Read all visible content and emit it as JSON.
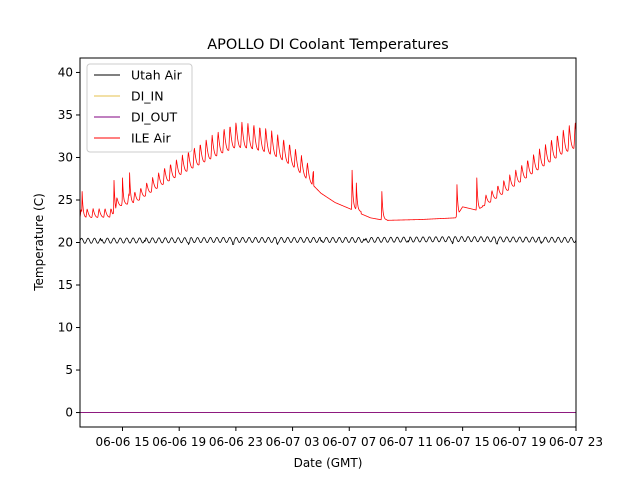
{
  "chart_data": {
    "type": "line",
    "title": "APOLLO DI Coolant Temperatures",
    "xlabel": "Date (GMT)",
    "ylabel": "Temperature (C)",
    "ylim": [
      -1.7,
      41.7
    ],
    "xlim_hours": [
      0,
      35
    ],
    "x_start": "06-06 12:00 (approx)",
    "yticks": [
      0,
      5,
      10,
      15,
      20,
      25,
      30,
      35,
      40
    ],
    "xticks": [
      {
        "label": "06-06 15",
        "hour": 3
      },
      {
        "label": "06-06 19",
        "hour": 7
      },
      {
        "label": "06-06 23",
        "hour": 11
      },
      {
        "label": "06-07 03",
        "hour": 15
      },
      {
        "label": "06-07 07",
        "hour": 19
      },
      {
        "label": "06-07 11",
        "hour": 23
      },
      {
        "label": "06-07 15",
        "hour": 27
      },
      {
        "label": "06-07 19",
        "hour": 31
      },
      {
        "label": "06-07 23",
        "hour": 35
      }
    ],
    "legend_position": "top-left",
    "series": [
      {
        "name": "Utah Air",
        "color": "#000000",
        "description": "nearly flat around 20.3 C with small oscillations",
        "baseline_points": [
          [
            0,
            20.2
          ],
          [
            10,
            20.3
          ],
          [
            20,
            20.3
          ],
          [
            27,
            20.4
          ],
          [
            35,
            20.3
          ]
        ],
        "oscillation_amplitude": 0.3
      },
      {
        "name": "DI_IN",
        "color": "#e5c14d",
        "description": "flat at 0 C",
        "baseline_points": [
          [
            0,
            0
          ],
          [
            35,
            0
          ]
        ]
      },
      {
        "name": "DI_OUT",
        "color": "#800080",
        "description": "flat at 0 C",
        "baseline_points": [
          [
            0,
            0
          ],
          [
            35,
            0
          ]
        ]
      },
      {
        "name": "ILE Air",
        "color": "#ff0000",
        "description": "daily cycle 23-34 C with sawtooth spikes",
        "baseline_points": [
          [
            0,
            22.9
          ],
          [
            2.3,
            23.0
          ],
          [
            2.6,
            24.2
          ],
          [
            4.0,
            24.8
          ],
          [
            6.0,
            27.0
          ],
          [
            8.0,
            28.8
          ],
          [
            10.0,
            30.5
          ],
          [
            11.0,
            31.2
          ],
          [
            12.0,
            31.1
          ],
          [
            13.0,
            30.7
          ],
          [
            14.0,
            30.0
          ],
          [
            15.0,
            29.0
          ],
          [
            16.0,
            27.5
          ],
          [
            17.0,
            25.8
          ],
          [
            18.0,
            24.7
          ],
          [
            19.0,
            24.0
          ],
          [
            19.8,
            23.4
          ],
          [
            20.5,
            22.9
          ],
          [
            21.5,
            22.6
          ],
          [
            24.0,
            22.7
          ],
          [
            26.5,
            22.9
          ],
          [
            27.0,
            24.2
          ],
          [
            28.0,
            23.8
          ],
          [
            29.0,
            24.8
          ],
          [
            30.0,
            25.9
          ],
          [
            32.0,
            28.2
          ],
          [
            34.0,
            30.4
          ],
          [
            35.0,
            31.2
          ]
        ],
        "spikes": [
          {
            "hour": 0.15,
            "peak": 26.0
          },
          {
            "hour": 2.4,
            "peak": 27.3
          },
          {
            "hour": 3.0,
            "peak": 27.6
          },
          {
            "hour": 3.5,
            "peak": 28.2
          },
          {
            "hour": 19.2,
            "peak": 28.5
          },
          {
            "hour": 19.5,
            "peak": 27.0
          },
          {
            "hour": 21.3,
            "peak": 26.0
          },
          {
            "hour": 26.6,
            "peak": 26.8
          },
          {
            "hour": 28.0,
            "peak": 27.6
          }
        ],
        "sawtooth_amplitude": 3.0
      }
    ]
  }
}
